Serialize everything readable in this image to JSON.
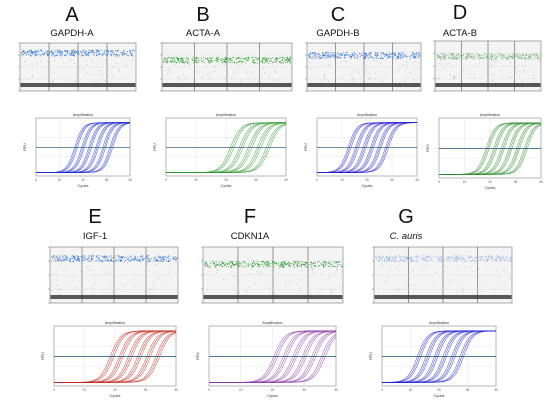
{
  "figure": {
    "panels": [
      {
        "letter": "A",
        "title": "GAPDH-A",
        "italic": false,
        "curve_color": "#1f2fd0",
        "pos_color": "#3a78d8",
        "pos_level": 0.8,
        "amp_title": "Amplification"
      },
      {
        "letter": "B",
        "title": "ACTA-A",
        "italic": false,
        "curve_color": "#2f9a2f",
        "pos_color": "#2f9a2f",
        "pos_level": 0.65,
        "amp_title": "Amplification"
      },
      {
        "letter": "C",
        "title": "GAPDH-B",
        "italic": false,
        "curve_color": "#2a1fd0",
        "pos_color": "#3a78d8",
        "pos_level": 0.75,
        "amp_title": "Amplification"
      },
      {
        "letter": "D",
        "title": "ACTA-B",
        "italic": false,
        "curve_color": "#2a8a2a",
        "pos_color": "#7ab87a",
        "pos_level": 0.7,
        "amp_title": "Amplification"
      },
      {
        "letter": "E",
        "title": "IGF-1",
        "italic": false,
        "curve_color": "#c0261c",
        "pos_color": "#3a78d8",
        "pos_level": 0.8,
        "amp_title": "Amplification"
      },
      {
        "letter": "F",
        "title": "CDKN1A",
        "italic": false,
        "curve_color": "#8a3aa8",
        "pos_color": "#2f9a2f",
        "pos_level": 0.7,
        "amp_title": "Amplification"
      },
      {
        "letter": "G",
        "title": "C. auris",
        "italic": true,
        "curve_color": "#1f1fd0",
        "pos_color": "#9ab4e0",
        "pos_level": 0.8,
        "amp_title": "Amplification"
      }
    ]
  },
  "chart_data": [
    {
      "type": "line",
      "panel": "A",
      "title": "Amplification",
      "xlabel": "Cycles",
      "ylabel": "RFU",
      "x_ticks": [
        "0",
        "10",
        "20",
        "30",
        "40"
      ],
      "xlim": [
        0,
        40
      ],
      "curve_midpoints": [
        17,
        20,
        23,
        26,
        29,
        32
      ],
      "threshold_rfu": "0.5 (relative)"
    },
    {
      "type": "line",
      "panel": "B",
      "title": "Amplification",
      "xlabel": "Cycles",
      "ylabel": "RFU",
      "x_ticks": [
        "0",
        "10",
        "20",
        "30",
        "40"
      ],
      "xlim": [
        0,
        40
      ],
      "curve_midpoints": [
        22,
        25,
        28,
        31,
        34
      ],
      "threshold_rfu": "0.5 (relative)"
    },
    {
      "type": "line",
      "panel": "C",
      "title": "Amplification",
      "xlabel": "Cycles",
      "ylabel": "RFU",
      "x_ticks": [
        "0",
        "10",
        "20",
        "30",
        "40"
      ],
      "xlim": [
        0,
        40
      ],
      "curve_midpoints": [
        13,
        16,
        19,
        22,
        25,
        28
      ],
      "threshold_rfu": "0.5 (relative)"
    },
    {
      "type": "line",
      "panel": "D",
      "title": "Amplification",
      "xlabel": "Cycles",
      "ylabel": "RFU",
      "x_ticks": [
        "0",
        "10",
        "20",
        "30",
        "40"
      ],
      "xlim": [
        0,
        40
      ],
      "curve_midpoints": [
        19,
        22,
        25,
        28,
        31,
        34
      ],
      "threshold_rfu": "0.5 (relative)"
    },
    {
      "type": "line",
      "panel": "E",
      "title": "Amplification",
      "xlabel": "Cycles",
      "ylabel": "RFU",
      "x_ticks": [
        "0",
        "10",
        "20",
        "30",
        "40"
      ],
      "xlim": [
        0,
        40
      ],
      "curve_midpoints": [
        19,
        22,
        25,
        28,
        31,
        34
      ],
      "threshold_rfu": "0.5 (relative)"
    },
    {
      "type": "line",
      "panel": "F",
      "title": "Amplification",
      "xlabel": "Cycles",
      "ylabel": "RFU",
      "x_ticks": [
        "0",
        "10",
        "20",
        "30",
        "40"
      ],
      "xlim": [
        0,
        40
      ],
      "curve_midpoints": [
        21,
        24,
        27,
        30,
        33,
        36
      ],
      "threshold_rfu": "0.5 (relative)"
    },
    {
      "type": "line",
      "panel": "G",
      "title": "Amplification",
      "xlabel": "Cycles",
      "ylabel": "RFU",
      "x_ticks": [
        "0",
        "10",
        "20",
        "30",
        "40"
      ],
      "xlim": [
        0,
        40
      ],
      "curve_midpoints": [
        13,
        16,
        19,
        22,
        25,
        28
      ],
      "threshold_rfu": "0.5 (relative)"
    }
  ]
}
